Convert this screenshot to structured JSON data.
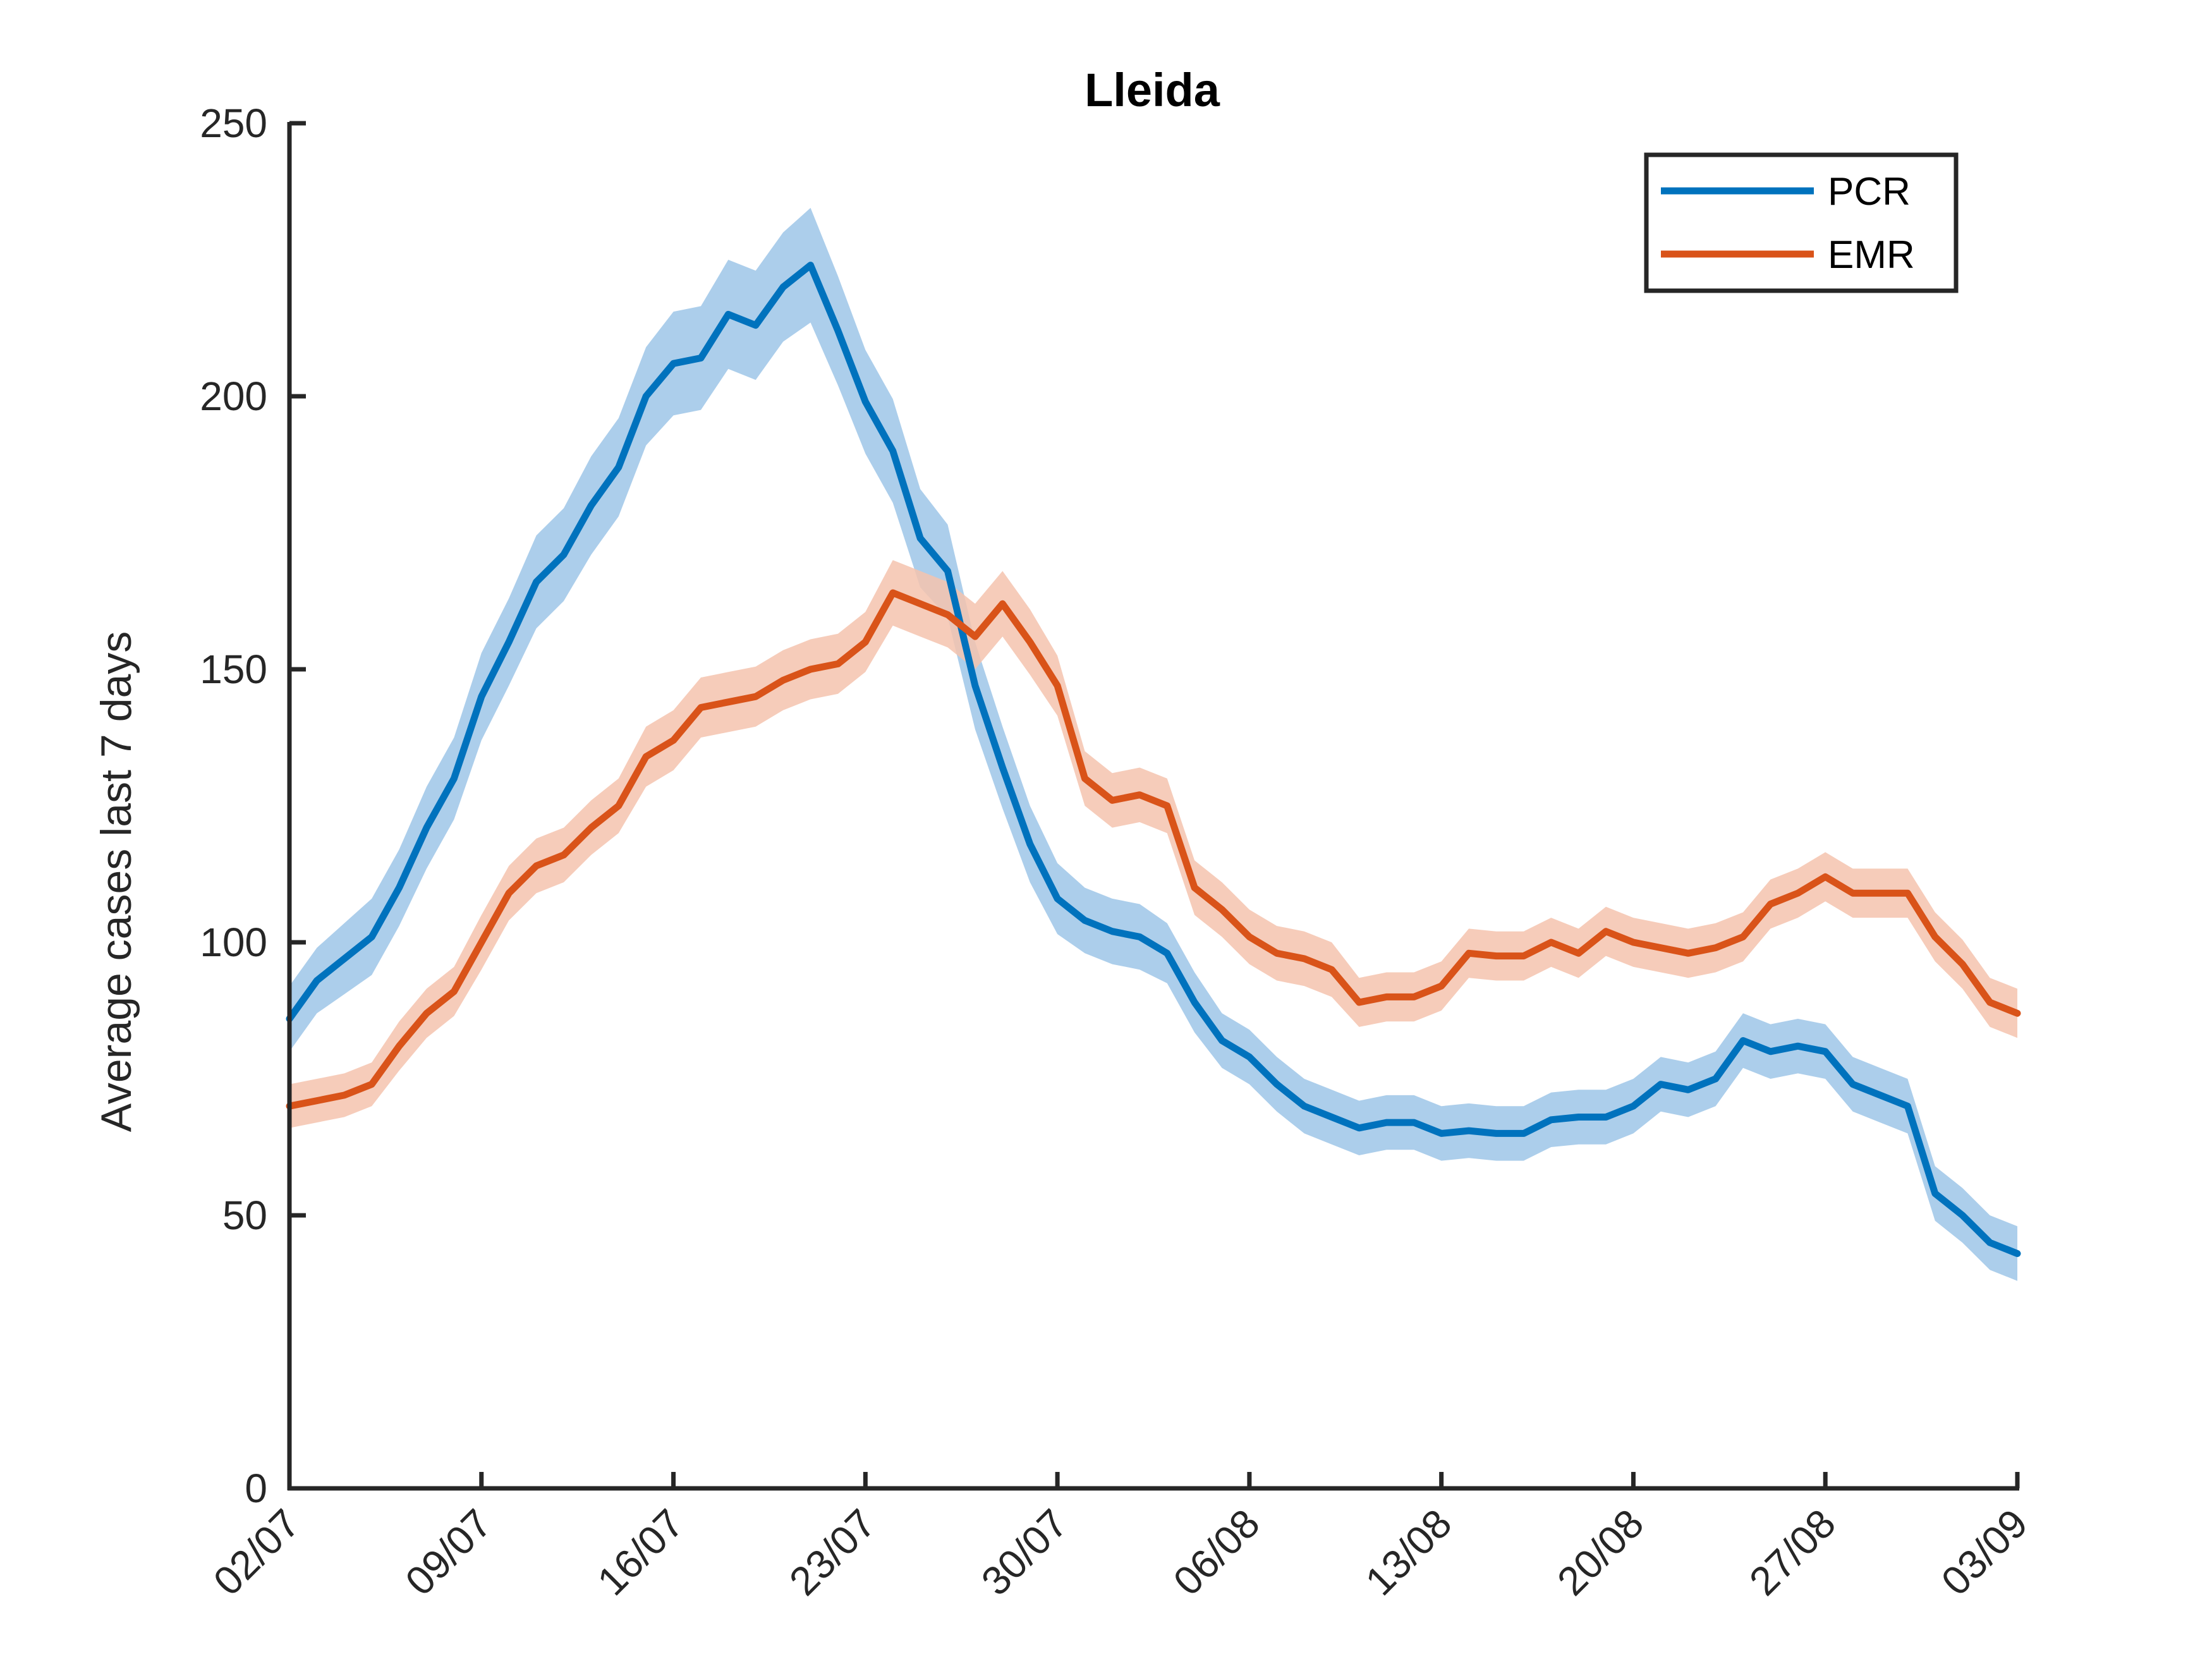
{
  "chart_data": {
    "type": "line",
    "title": "Lleida",
    "xlabel": "",
    "ylabel": "Average cases last 7 days",
    "ylim": [
      0,
      250
    ],
    "yticks": [
      0,
      50,
      100,
      150,
      200,
      250
    ],
    "x_range_days": [
      0,
      63
    ],
    "x_ticks": [
      {
        "day": 0,
        "label": "02/07"
      },
      {
        "day": 7,
        "label": "09/07"
      },
      {
        "day": 14,
        "label": "16/07"
      },
      {
        "day": 21,
        "label": "23/07"
      },
      {
        "day": 28,
        "label": "30/07"
      },
      {
        "day": 35,
        "label": "06/08"
      },
      {
        "day": 42,
        "label": "13/08"
      },
      {
        "day": 49,
        "label": "20/08"
      },
      {
        "day": 56,
        "label": "27/08"
      },
      {
        "day": 63,
        "label": "03/09"
      }
    ],
    "legend": {
      "position": "top-right"
    },
    "series": [
      {
        "name": "PCR",
        "color": "#0072BD",
        "band_color": "#9DC6E7",
        "x": [
          0,
          1,
          2,
          3,
          4,
          5,
          6,
          7,
          8,
          9,
          10,
          11,
          12,
          13,
          14,
          15,
          16,
          17,
          18,
          19,
          20,
          21,
          22,
          23,
          24,
          25,
          26,
          27,
          28,
          29,
          30,
          31,
          32,
          33,
          34,
          35,
          36,
          37,
          38,
          39,
          40,
          41,
          42,
          43,
          44,
          45,
          46,
          47,
          48,
          49,
          50,
          51,
          52,
          53,
          54,
          55,
          56,
          57,
          58,
          59,
          60,
          61,
          62,
          63
        ],
        "values": [
          86,
          93,
          97,
          101,
          110,
          121,
          130,
          145,
          155,
          166,
          171,
          180,
          187,
          200,
          206,
          207,
          215,
          213,
          220,
          224,
          212,
          199,
          190,
          174,
          168,
          147,
          132,
          118,
          108,
          104,
          102,
          101,
          98,
          89,
          82,
          79,
          74,
          70,
          68,
          66,
          67,
          67,
          65,
          65.5,
          65,
          65,
          67.5,
          68,
          68,
          70,
          74,
          73,
          75,
          82,
          80,
          81,
          80,
          74,
          72,
          70,
          54,
          50,
          45,
          43
        ],
        "band_halfwidth": [
          6,
          6,
          6.5,
          7,
          7,
          7.5,
          7.5,
          8,
          8,
          8.5,
          8.5,
          9,
          9,
          9,
          9.5,
          9.5,
          10,
          10,
          10,
          10.5,
          10,
          9.5,
          9.5,
          9,
          8.5,
          8,
          7.5,
          7,
          6.5,
          6,
          6,
          6,
          5.5,
          5.5,
          5,
          5,
          5,
          5,
          5,
          5,
          5,
          5,
          5,
          5,
          5,
          5,
          5,
          5,
          5,
          5,
          5,
          5,
          5,
          5,
          5,
          5,
          5,
          5,
          5,
          5,
          5,
          5,
          5,
          5
        ]
      },
      {
        "name": "EMR",
        "color": "#D95319",
        "band_color": "#F4C3AE",
        "x": [
          0,
          1,
          2,
          3,
          4,
          5,
          6,
          7,
          8,
          9,
          10,
          11,
          12,
          13,
          14,
          15,
          16,
          17,
          18,
          19,
          20,
          21,
          22,
          23,
          24,
          25,
          26,
          27,
          28,
          29,
          30,
          31,
          32,
          33,
          34,
          35,
          36,
          37,
          38,
          39,
          40,
          41,
          42,
          43,
          44,
          45,
          46,
          47,
          48,
          49,
          50,
          51,
          52,
          53,
          54,
          55,
          56,
          57,
          58,
          59,
          60,
          61,
          62,
          63
        ],
        "values": [
          70,
          71,
          72,
          74,
          81,
          87,
          91,
          100,
          109,
          114,
          116,
          121,
          125,
          134,
          137,
          143,
          144,
          145,
          148,
          150,
          151,
          155,
          164,
          162,
          160,
          156,
          162,
          155,
          147,
          130,
          126,
          127,
          125,
          110,
          106,
          101,
          98,
          97,
          95,
          89,
          90,
          90,
          92,
          98,
          97.5,
          97.5,
          100,
          98,
          102,
          100,
          99,
          98,
          99,
          101,
          107,
          109,
          112,
          109,
          109,
          109,
          101,
          96,
          89,
          87
        ],
        "band_halfwidth": [
          4,
          4,
          4,
          4,
          4.5,
          4.5,
          4.5,
          5,
          5,
          5,
          5,
          5,
          5,
          5.5,
          5.5,
          5.5,
          5.5,
          5.5,
          5.5,
          5.5,
          5.5,
          5.5,
          6,
          6,
          6,
          6,
          6,
          6,
          5.5,
          5,
          5,
          5,
          5,
          5,
          5,
          5,
          5,
          5,
          5,
          4.5,
          4.5,
          4.5,
          4.5,
          4.5,
          4.5,
          4.5,
          4.5,
          4.5,
          4.5,
          4.5,
          4.5,
          4.5,
          4.5,
          4.5,
          4.5,
          4.5,
          4.5,
          4.5,
          4.5,
          4.5,
          4.5,
          4.5,
          4.5,
          4.5
        ]
      }
    ]
  }
}
